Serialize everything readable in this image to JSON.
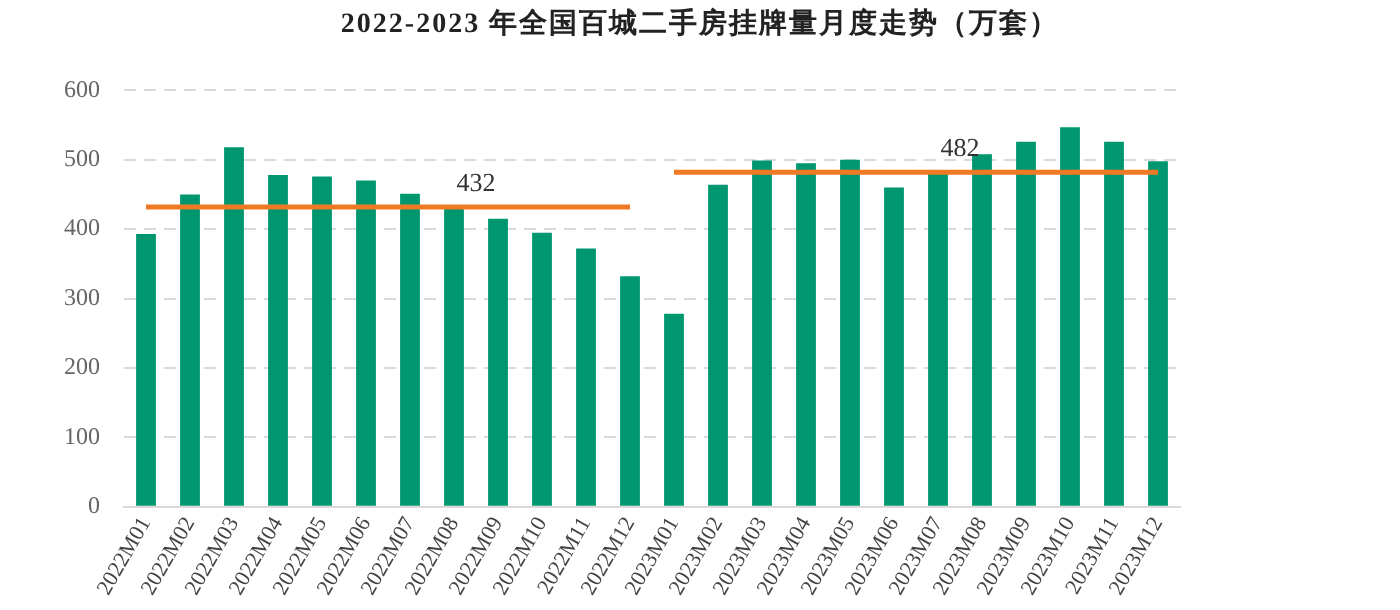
{
  "chart_data": {
    "type": "bar",
    "title": "2022-2023 年全国百城二手房挂牌量月度走势（万套）",
    "categories": [
      "2022M01",
      "2022M02",
      "2022M03",
      "2022M04",
      "2022M05",
      "2022M06",
      "2022M07",
      "2022M08",
      "2022M09",
      "2022M10",
      "2022M11",
      "2022M12",
      "2023M01",
      "2023M02",
      "2023M03",
      "2023M04",
      "2023M05",
      "2023M06",
      "2023M07",
      "2023M08",
      "2023M09",
      "2023M10",
      "2023M11",
      "2023M12"
    ],
    "series": [
      {
        "color": "#009670",
        "values": [
          393,
          450,
          518,
          478,
          476,
          470,
          451,
          433,
          415,
          395,
          372,
          332,
          278,
          464,
          499,
          495,
          500,
          460,
          481,
          508,
          526,
          547,
          526,
          498
        ]
      },
      {
        "type": "line",
        "color": "#f07a24",
        "values": [
          432,
          432,
          432,
          432,
          432,
          432,
          432,
          432,
          432,
          432,
          432,
          432,
          null,
          null,
          null,
          null,
          null,
          null,
          null,
          null,
          null,
          null,
          null,
          null
        ]
      },
      {
        "type": "line",
        "color": "#f07a24",
        "values": [
          null,
          null,
          null,
          null,
          null,
          null,
          null,
          null,
          null,
          null,
          null,
          null,
          482,
          482,
          482,
          482,
          482,
          482,
          482,
          482,
          482,
          482,
          482,
          482
        ]
      }
    ],
    "annotations": [
      {
        "text": "432",
        "x": "2022M08",
        "y": 432
      },
      {
        "text": "482",
        "x": "2023M07",
        "y": 482
      }
    ],
    "ylim": [
      0,
      600
    ],
    "yticks": [
      0,
      100,
      200,
      300,
      400,
      500,
      600
    ],
    "grid": "y",
    "legend": false,
    "marker": "none"
  }
}
